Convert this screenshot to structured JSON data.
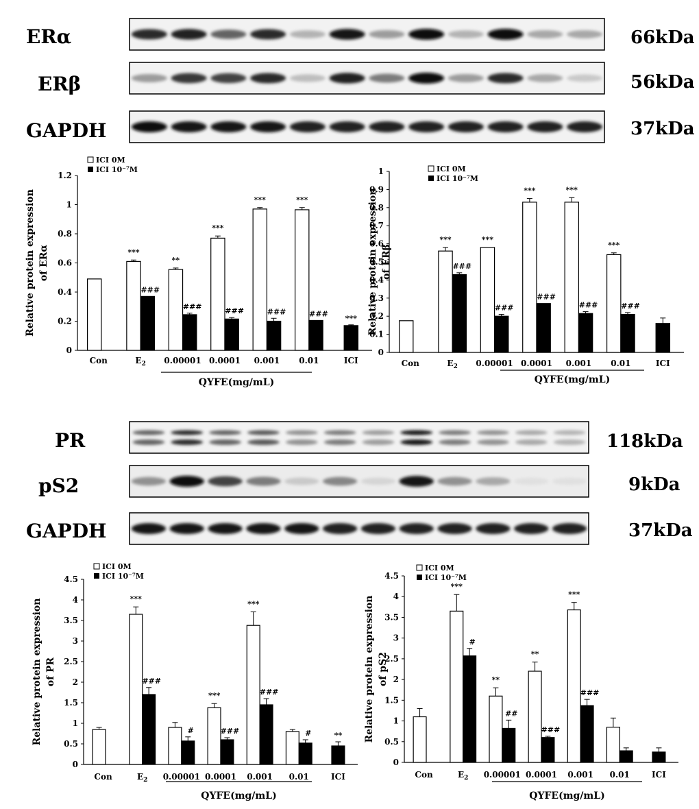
{
  "blots": [
    {
      "panel": "ER",
      "rows": [
        {
          "protein": "ERα",
          "size": "66kDa",
          "intensities": [
            0.85,
            0.9,
            0.6,
            0.85,
            0.25,
            0.95,
            0.35,
            1.0,
            0.25,
            1.0,
            0.3,
            0.3
          ]
        },
        {
          "protein": "ERβ",
          "size": "56kDa",
          "intensities": [
            0.35,
            0.8,
            0.75,
            0.85,
            0.2,
            0.9,
            0.5,
            1.0,
            0.35,
            0.85,
            0.3,
            0.15
          ]
        },
        {
          "protein": "GAPDH",
          "size": "37kDa",
          "intensities": [
            1.0,
            0.95,
            0.95,
            0.95,
            0.9,
            0.9,
            0.9,
            0.9,
            0.9,
            0.9,
            0.9,
            0.9
          ]
        }
      ]
    },
    {
      "panel": "PR",
      "rows": [
        {
          "protein": "PR",
          "size": "118kDa",
          "intensities": [
            0.6,
            0.85,
            0.6,
            0.65,
            0.4,
            0.5,
            0.35,
            0.95,
            0.5,
            0.4,
            0.3,
            0.25
          ]
        },
        {
          "protein": "pS2",
          "size": "9kDa",
          "intensities": [
            0.4,
            1.0,
            0.75,
            0.5,
            0.15,
            0.45,
            0.1,
            0.95,
            0.4,
            0.3,
            0.05,
            0.05
          ]
        },
        {
          "protein": "GAPDH",
          "size": "37kDa",
          "intensities": [
            0.95,
            0.95,
            0.95,
            0.95,
            0.95,
            0.9,
            0.9,
            0.9,
            0.9,
            0.9,
            0.9,
            0.9
          ]
        }
      ]
    }
  ],
  "chart_data": [
    {
      "type": "bar",
      "ylabel_line1": "Relative protein expression",
      "ylabel_line2": "of ERα",
      "ylim": [
        0,
        1.2
      ],
      "yticks": [
        "0",
        "0.2",
        "0.4",
        "0.6",
        "0.8",
        "1",
        "1.2"
      ],
      "categories": [
        "Con",
        "E2",
        "0.00001",
        "0.0001",
        "0.001",
        "0.01",
        "ICI"
      ],
      "xlabel": "QYFE(mg/mL)",
      "legend": [
        "ICI 0M",
        "ICI 10⁻⁷M"
      ],
      "series": [
        {
          "name": "ICI 0M",
          "values": [
            0.49,
            0.61,
            0.555,
            0.77,
            0.97,
            0.965,
            null
          ],
          "errors": [
            0,
            0.01,
            0.01,
            0.015,
            0.01,
            0.015,
            0
          ]
        },
        {
          "name": "ICI 10⁻⁷M",
          "values": [
            null,
            0.37,
            0.245,
            0.215,
            0.2,
            0.205,
            0.17
          ],
          "errors": [
            0,
            0,
            0.01,
            0.01,
            0.02,
            0,
            0.005
          ]
        }
      ],
      "sig_white": [
        "",
        "***",
        "**",
        "***",
        "***",
        "***",
        ""
      ],
      "sig_black": [
        "",
        "###",
        "###",
        "###",
        "###",
        "###",
        "***"
      ]
    },
    {
      "type": "bar",
      "ylabel_line1": "Relative protein expression",
      "ylabel_line2": "of ERβ",
      "ylim": [
        0,
        1
      ],
      "yticks": [
        "0",
        "0.1",
        "0.2",
        "0.3",
        "0.4",
        "0.5",
        "0.6",
        "0.7",
        "0.8",
        "0.9",
        "1"
      ],
      "categories": [
        "Con",
        "E2",
        "0.00001",
        "0.0001",
        "0.001",
        "0.01",
        "ICI"
      ],
      "xlabel": "QYFE(mg/mL)",
      "legend": [
        "ICI 0M",
        "ICI 10⁻⁷M"
      ],
      "series": [
        {
          "name": "ICI 0M",
          "values": [
            0.175,
            0.56,
            0.58,
            0.83,
            0.83,
            0.54,
            null
          ],
          "errors": [
            0,
            0.02,
            0,
            0.02,
            0.025,
            0.01,
            0
          ]
        },
        {
          "name": "ICI 10⁻⁷M",
          "values": [
            null,
            0.43,
            0.2,
            0.27,
            0.215,
            0.21,
            0.16
          ],
          "errors": [
            0,
            0.01,
            0.01,
            0,
            0.01,
            0.01,
            0.03
          ]
        }
      ],
      "sig_white": [
        "",
        "***",
        "***",
        "***",
        "***",
        "***",
        ""
      ],
      "sig_black": [
        "",
        "###",
        "###",
        "###",
        "###",
        "###",
        ""
      ]
    },
    {
      "type": "bar",
      "ylabel_line1": "Relative protein expression",
      "ylabel_line2": "of PR",
      "ylim": [
        0,
        4.5
      ],
      "yticks": [
        "0",
        "0.5",
        "1",
        "1.5",
        "2",
        "2.5",
        "3",
        "3.5",
        "4",
        "4.5"
      ],
      "categories": [
        "Con",
        "E2",
        "0.00001",
        "0.0001",
        "0.001",
        "0.01",
        "ICI"
      ],
      "xlabel": "QYFE(mg/mL)",
      "legend": [
        "ICI 0M",
        "ICI 10⁻⁷M"
      ],
      "series": [
        {
          "name": "ICI 0M",
          "values": [
            0.85,
            3.65,
            0.9,
            1.38,
            3.38,
            0.8,
            null
          ],
          "errors": [
            0.05,
            0.18,
            0.12,
            0.1,
            0.33,
            0.05,
            0
          ]
        },
        {
          "name": "ICI 10⁻⁷M",
          "values": [
            null,
            1.7,
            0.57,
            0.6,
            1.45,
            0.52,
            0.45
          ],
          "errors": [
            0,
            0.17,
            0.1,
            0.05,
            0.15,
            0.08,
            0.1
          ]
        }
      ],
      "sig_white": [
        "",
        "***",
        "",
        "***",
        "***",
        "",
        ""
      ],
      "sig_black": [
        "",
        "###",
        "#",
        "###",
        "###",
        "#",
        "**"
      ]
    },
    {
      "type": "bar",
      "ylabel_line1": "Relative protein expression",
      "ylabel_line2": "of pS2",
      "ylim": [
        0,
        4.5
      ],
      "yticks": [
        "0",
        "0.5",
        "1",
        "1.5",
        "2",
        "2.5",
        "3",
        "3.5",
        "4",
        "4.5"
      ],
      "categories": [
        "Con",
        "E2",
        "0.00001",
        "0.0001",
        "0.001",
        "0.01",
        "ICI"
      ],
      "xlabel": "QYFE(mg/mL)",
      "legend": [
        "ICI 0M",
        "ICI 10⁻⁷M"
      ],
      "series": [
        {
          "name": "ICI 0M",
          "values": [
            1.1,
            3.65,
            1.6,
            2.2,
            3.68,
            0.85,
            null
          ],
          "errors": [
            0.2,
            0.4,
            0.2,
            0.22,
            0.18,
            0.22,
            0
          ]
        },
        {
          "name": "ICI 10⁻⁷M",
          "values": [
            null,
            2.57,
            0.82,
            0.6,
            1.37,
            0.28,
            0.25
          ],
          "errors": [
            0,
            0.18,
            0.2,
            0.03,
            0.15,
            0.07,
            0.1
          ]
        }
      ],
      "sig_white": [
        "",
        "***",
        "**",
        "**",
        "***",
        "",
        ""
      ],
      "sig_black": [
        "",
        "#",
        "##",
        "###",
        "###",
        "",
        ""
      ]
    }
  ]
}
